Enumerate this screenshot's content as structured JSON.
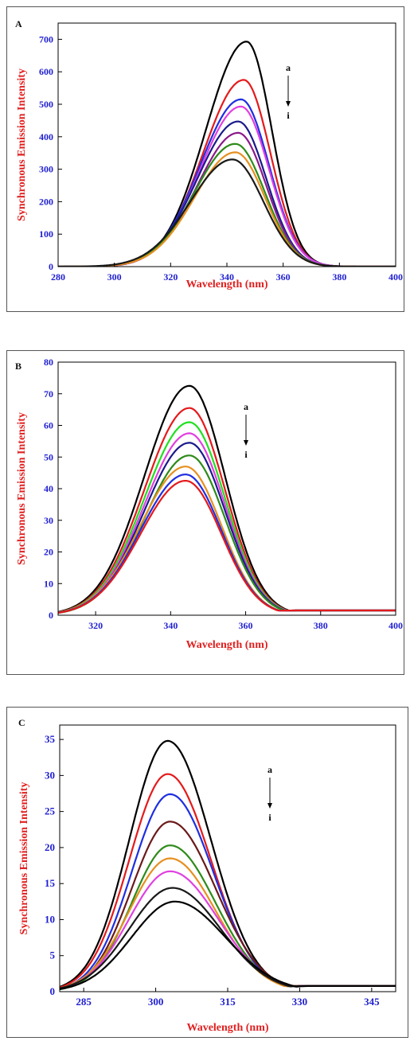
{
  "chart_data": [
    {
      "panel_label": "A",
      "type": "line",
      "xlabel": "Wavelength (nm)",
      "ylabel": "Synchronous Emission Intensity",
      "xlim": [
        280,
        400
      ],
      "ylim": [
        0,
        750
      ],
      "xticks": [
        280,
        300,
        320,
        340,
        360,
        380,
        400
      ],
      "yticks": [
        0,
        100,
        200,
        300,
        400,
        500,
        600,
        700
      ],
      "annotation_top": "a",
      "annotation_bottom": "i",
      "grid": false,
      "series": [
        {
          "color": "#000000",
          "peak_x": 347,
          "peak_y": 693,
          "wl": 14.5,
          "wr": 9
        },
        {
          "color": "#e41a1c",
          "peak_x": 346,
          "peak_y": 575,
          "wl": 14.5,
          "wr": 9.5
        },
        {
          "color": "#1f2fe0",
          "peak_x": 345,
          "peak_y": 515,
          "wl": 14.5,
          "wr": 10
        },
        {
          "color": "#e040e0",
          "peak_x": 345,
          "peak_y": 493,
          "wl": 14.5,
          "wr": 10
        },
        {
          "color": "#1a1a8c",
          "peak_x": 344,
          "peak_y": 447,
          "wl": 14.5,
          "wr": 10
        },
        {
          "color": "#8b1a8b",
          "peak_x": 344,
          "peak_y": 412,
          "wl": 14.5,
          "wr": 10
        },
        {
          "color": "#2e8b1a",
          "peak_x": 343,
          "peak_y": 378,
          "wl": 14.5,
          "wr": 10.5
        },
        {
          "color": "#e69020",
          "peak_x": 343,
          "peak_y": 352,
          "wl": 14.5,
          "wr": 10.5
        },
        {
          "color": "#1a1a1a",
          "peak_x": 342,
          "peak_y": 330,
          "wl": 15,
          "wr": 11
        }
      ]
    },
    {
      "panel_label": "B",
      "type": "line",
      "xlabel": "Wavelength (nm)",
      "ylabel": "Synchronous Emission Intensity",
      "xlim": [
        310,
        400
      ],
      "ylim": [
        0,
        80
      ],
      "xticks": [
        320,
        340,
        360,
        380,
        400
      ],
      "yticks": [
        0,
        10,
        20,
        30,
        40,
        50,
        60,
        70,
        80
      ],
      "annotation_top": "a",
      "annotation_bottom": "i",
      "grid": false,
      "series": [
        {
          "color": "#000000",
          "peak_x": 345,
          "peak_y": 72.5,
          "wl": 12,
          "wr": 9.5,
          "tail": 1.5
        },
        {
          "color": "#e41a1c",
          "peak_x": 345,
          "peak_y": 65.5,
          "wl": 12,
          "wr": 9.5,
          "tail": 1.5
        },
        {
          "color": "#20e020",
          "peak_x": 345,
          "peak_y": 61,
          "wl": 12,
          "wr": 9.5,
          "tail": 1.5
        },
        {
          "color": "#e040e0",
          "peak_x": 345,
          "peak_y": 57.5,
          "wl": 12,
          "wr": 9.5,
          "tail": 1.5
        },
        {
          "color": "#1a1a8c",
          "peak_x": 345,
          "peak_y": 54.5,
          "wl": 12,
          "wr": 9.5,
          "tail": 1.5
        },
        {
          "color": "#2e8b1a",
          "peak_x": 345,
          "peak_y": 50.5,
          "wl": 12,
          "wr": 9.5,
          "tail": 1.5
        },
        {
          "color": "#e69020",
          "peak_x": 344,
          "peak_y": 47,
          "wl": 12,
          "wr": 9.5,
          "tail": 1.5
        },
        {
          "color": "#1f2fe0",
          "peak_x": 344,
          "peak_y": 44.5,
          "wl": 12,
          "wr": 9.5,
          "tail": 1.5
        },
        {
          "color": "#e41a1c",
          "peak_x": 344,
          "peak_y": 42.5,
          "wl": 12,
          "wr": 9.5,
          "tail": 1.5
        }
      ]
    },
    {
      "panel_label": "C",
      "type": "line",
      "xlabel": "Wavelength (nm)",
      "ylabel": "Synchronous Emission Intensity",
      "xlim": [
        280,
        350
      ],
      "ylim": [
        0,
        37
      ],
      "xticks": [
        285,
        300,
        315,
        330,
        345
      ],
      "yticks": [
        0,
        5,
        10,
        15,
        20,
        25,
        30,
        35
      ],
      "annotation_top": "a",
      "annotation_bottom": "i",
      "grid": false,
      "series": [
        {
          "color": "#000000",
          "peak_x": 302.5,
          "peak_y": 34.8,
          "wl": 8,
          "wr": 9,
          "tail": 0.8
        },
        {
          "color": "#e41a1c",
          "peak_x": 302.5,
          "peak_y": 30.2,
          "wl": 8,
          "wr": 9,
          "tail": 0.8
        },
        {
          "color": "#1f2fe0",
          "peak_x": 303,
          "peak_y": 27.4,
          "wl": 8,
          "wr": 9,
          "tail": 0.8
        },
        {
          "color": "#6b1a1a",
          "peak_x": 303,
          "peak_y": 23.6,
          "wl": 8,
          "wr": 9.5,
          "tail": 0.8
        },
        {
          "color": "#2e8b1a",
          "peak_x": 303,
          "peak_y": 20.3,
          "wl": 8,
          "wr": 9.5,
          "tail": 0.8
        },
        {
          "color": "#e69020",
          "peak_x": 303,
          "peak_y": 18.5,
          "wl": 8.5,
          "wr": 9.5,
          "tail": 0.8
        },
        {
          "color": "#e040e0",
          "peak_x": 303,
          "peak_y": 16.7,
          "wl": 8.5,
          "wr": 10,
          "tail": 0.8
        },
        {
          "color": "#1a1a1a",
          "peak_x": 303.5,
          "peak_y": 14.4,
          "wl": 9,
          "wr": 10,
          "tail": 0.8
        },
        {
          "color": "#000000",
          "peak_x": 304,
          "peak_y": 12.5,
          "wl": 9,
          "wr": 10.5,
          "tail": 0.8
        }
      ]
    }
  ]
}
